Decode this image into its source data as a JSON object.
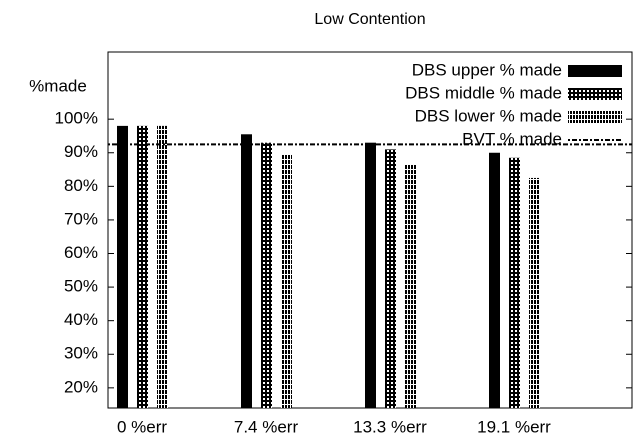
{
  "chart_data": {
    "type": "bar",
    "title": "Low Contention",
    "y_label": "%made",
    "categories": [
      "0 %err",
      "7.4 %err",
      "13.3 %err",
      "19.1 %err"
    ],
    "series": [
      {
        "name": "DBS upper % made",
        "color": "#000000",
        "fill": "solid",
        "values": [
          98,
          95.5,
          93,
          90
        ]
      },
      {
        "name": "DBS middle % made",
        "color": "#000000",
        "fill": "hatch",
        "values": [
          98,
          93,
          91,
          88.5
        ]
      },
      {
        "name": "DBS lower % made",
        "color": "#000000",
        "fill": "stripes",
        "values": [
          98,
          89.5,
          86.5,
          82.5
        ]
      }
    ],
    "reference_line": {
      "name": "BVT % made",
      "value": 92.5
    },
    "ylim": [
      14,
      120
    ],
    "yticks": [
      {
        "value": 20,
        "label": "20%"
      },
      {
        "value": 30,
        "label": "30%"
      },
      {
        "value": 40,
        "label": "40%"
      },
      {
        "value": 50,
        "label": "50%"
      },
      {
        "value": 60,
        "label": "60%"
      },
      {
        "value": 70,
        "label": "70%"
      },
      {
        "value": 80,
        "label": "80%"
      },
      {
        "value": 90,
        "label": "90%"
      },
      {
        "value": 100,
        "label": "100%"
      }
    ],
    "legend": "top-right"
  }
}
